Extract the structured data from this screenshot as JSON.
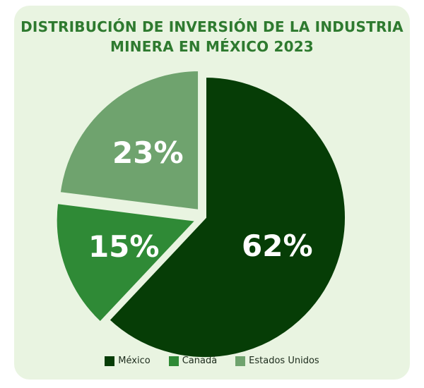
{
  "chart_data": {
    "type": "pie",
    "title_lines": [
      "DISTRIBUCIÓN DE INVERSIÓN DE LA INDUSTRIA",
      "MINERA EN MÉXICO 2023"
    ],
    "slices": [
      {
        "label": "México",
        "value": 62,
        "display": "62%",
        "color": "#063d06"
      },
      {
        "label": "Canadá",
        "value": 15,
        "display": "15%",
        "color": "#2f8a36"
      },
      {
        "label": "Estados Unidos",
        "value": 23,
        "display": "23%",
        "color": "#6fa36e"
      }
    ],
    "legend": [
      "México",
      "Canadá",
      "Estados Unidos"
    ],
    "legend_position": "bottom"
  }
}
